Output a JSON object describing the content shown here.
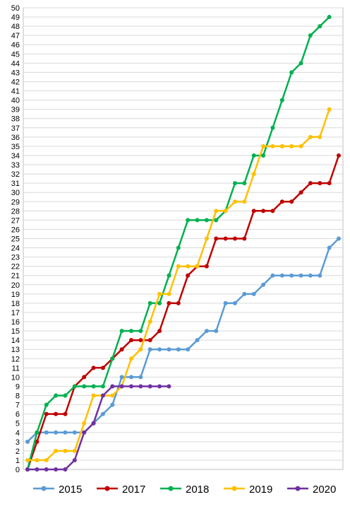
{
  "chart_data": {
    "type": "line",
    "title": "",
    "xlabel": "",
    "ylabel": "",
    "ylim": [
      0,
      50
    ],
    "y_ticks": [
      "0",
      "1",
      "2",
      "3",
      "4",
      "5",
      "6",
      "7",
      "8",
      "9",
      "10",
      "11",
      "12",
      "13",
      "14",
      "15",
      "16",
      "17",
      "18",
      "19",
      "20",
      "21",
      "22",
      "23",
      "24",
      "25",
      "26",
      "27",
      "28",
      "29",
      "30",
      "31",
      "32",
      "33",
      "34",
      "35",
      "36",
      "37",
      "38",
      "39",
      "40",
      "41",
      "42",
      "43",
      "44",
      "45",
      "46",
      "47",
      "48",
      "49",
      "50"
    ],
    "x_points": 34,
    "grid": "horizontal",
    "legend_position": "bottom",
    "series": [
      {
        "name": "2015",
        "color": "#5b9bd5",
        "values": [
          3,
          4,
          4,
          4,
          4,
          4,
          4,
          5,
          6,
          7,
          10,
          10,
          10,
          13,
          13,
          13,
          13,
          13,
          14,
          15,
          15,
          18,
          18,
          19,
          19,
          20,
          21,
          21,
          21,
          21,
          21,
          21,
          24,
          25
        ]
      },
      {
        "name": "2017",
        "color": "#c00000",
        "values": [
          0,
          3,
          6,
          6,
          6,
          9,
          10,
          11,
          11,
          12,
          13,
          14,
          14,
          14,
          15,
          18,
          18,
          21,
          22,
          22,
          25,
          25,
          25,
          25,
          28,
          28,
          28,
          29,
          29,
          30,
          31,
          31,
          31,
          34
        ]
      },
      {
        "name": "2018",
        "color": "#00b050",
        "values": [
          0,
          4,
          7,
          8,
          8,
          9,
          9,
          9,
          9,
          12,
          15,
          15,
          15,
          18,
          18,
          21,
          24,
          27,
          27,
          27,
          27,
          28,
          31,
          31,
          34,
          34,
          37,
          40,
          43,
          44,
          47,
          48,
          49
        ]
      },
      {
        "name": "2019",
        "color": "#ffc000",
        "values": [
          1,
          1,
          1,
          2,
          2,
          2,
          5,
          8,
          8,
          8,
          9,
          12,
          13,
          16,
          19,
          19,
          22,
          22,
          22,
          25,
          28,
          28,
          29,
          29,
          32,
          35,
          35,
          35,
          35,
          35,
          36,
          36,
          39
        ]
      },
      {
        "name": "2020",
        "color": "#7030a0",
        "values": [
          0,
          0,
          0,
          0,
          0,
          1,
          4,
          5,
          8,
          9,
          9,
          9,
          9,
          9,
          9,
          9
        ]
      }
    ]
  }
}
